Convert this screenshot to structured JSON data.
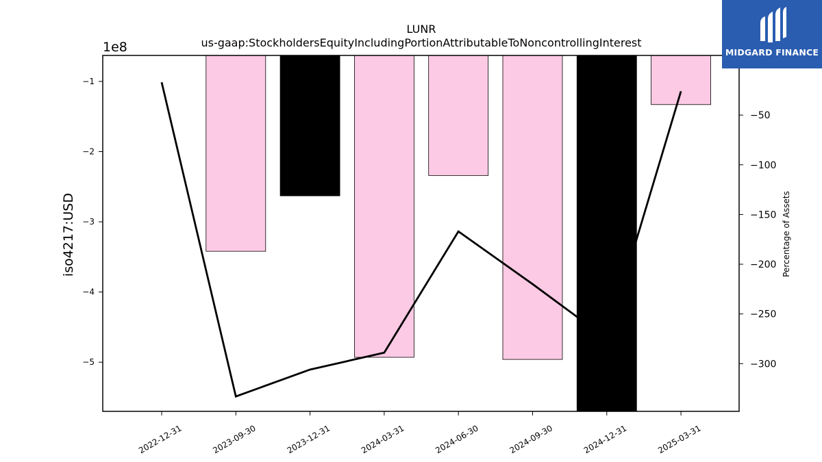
{
  "chart_data": {
    "type": "bar",
    "title": "LUNR",
    "subtitle": "us-gaap:StockholdersEquityIncludingPortionAttributableToNoncontrollingInterest",
    "ylabel": "iso4217:USD",
    "y2label": "Percentage of Assets",
    "y_offset_label": "1e8",
    "categories": [
      "2022-12-31",
      "2023-09-30",
      "2023-12-31",
      "2024-03-31",
      "2024-06-30",
      "2024-09-30",
      "2024-12-31",
      "2025-03-31"
    ],
    "bars": [
      {
        "category": "2022-12-31",
        "value": null,
        "color": "#fccae4"
      },
      {
        "category": "2023-09-30",
        "value": -342000000,
        "color": "#fccae4"
      },
      {
        "category": "2023-12-31",
        "value": -263000000,
        "color": "#000000"
      },
      {
        "category": "2024-03-31",
        "value": -493000000,
        "color": "#fccae4"
      },
      {
        "category": "2024-06-30",
        "value": -234000000,
        "color": "#fccae4"
      },
      {
        "category": "2024-09-30",
        "value": -496000000,
        "color": "#fccae4"
      },
      {
        "category": "2024-12-31",
        "value": -570000000,
        "color": "#000000"
      },
      {
        "category": "2025-03-31",
        "value": -133000000,
        "color": "#fccae4"
      }
    ],
    "line": {
      "axis": "right",
      "color": "#000000",
      "values": [
        -17,
        -333,
        -306,
        -289,
        -167,
        -220,
        -275,
        -26
      ]
    },
    "ylim": [
      -570000000.0,
      -63000000.0
    ],
    "y2lim": [
      -348,
      10
    ],
    "yticks": [
      -1,
      -2,
      -3,
      -4,
      -5
    ],
    "y2ticks": [
      -50,
      -100,
      -150,
      -200,
      -250,
      -300
    ],
    "grid": false
  },
  "logo": {
    "text": "MIDGARD FINANCE",
    "icon": "midgard-logo-icon",
    "background": "#2a5db0"
  }
}
